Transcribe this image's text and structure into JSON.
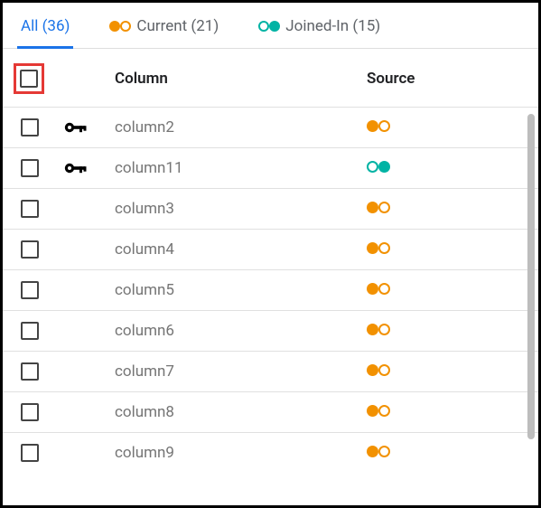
{
  "colors": {
    "orange": "#f29100",
    "teal": "#00b3a4",
    "activeTab": "#1a73e8",
    "text": "#5f6368",
    "highlight": "#e53935"
  },
  "tabs": {
    "all": {
      "label": "All (36)"
    },
    "current": {
      "label": "Current (21)"
    },
    "joined": {
      "label": "Joined-In (15)"
    }
  },
  "header": {
    "column": "Column",
    "source": "Source"
  },
  "rows": [
    {
      "name": "column2",
      "key": true,
      "source": "current"
    },
    {
      "name": "column11",
      "key": true,
      "source": "joined"
    },
    {
      "name": "column3",
      "key": false,
      "source": "current"
    },
    {
      "name": "column4",
      "key": false,
      "source": "current"
    },
    {
      "name": "column5",
      "key": false,
      "source": "current"
    },
    {
      "name": "column6",
      "key": false,
      "source": "current"
    },
    {
      "name": "column7",
      "key": false,
      "source": "current"
    },
    {
      "name": "column8",
      "key": false,
      "source": "current"
    },
    {
      "name": "column9",
      "key": false,
      "source": "current"
    }
  ]
}
